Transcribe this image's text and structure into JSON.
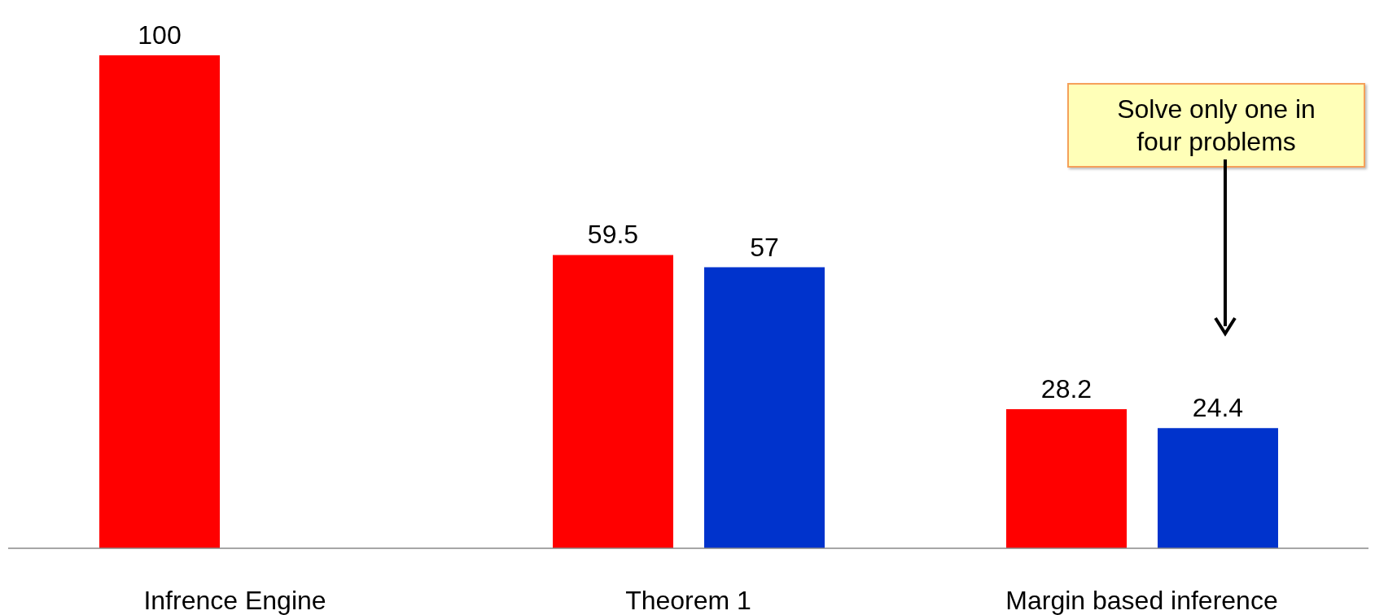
{
  "chart_data": {
    "type": "bar",
    "categories": [
      "Infrence Engine",
      "Theorem 1",
      "Margin based inference"
    ],
    "series": [
      {
        "color": "#ff0000",
        "values": [
          100,
          59.5,
          28.2
        ]
      },
      {
        "color": "#0033cc",
        "values": [
          null,
          57,
          24.4
        ]
      }
    ],
    "ylim": [
      0,
      100
    ],
    "tick_labels": "x",
    "data_labels": true,
    "annotations": [
      "Solve only one in four problems"
    ]
  }
}
